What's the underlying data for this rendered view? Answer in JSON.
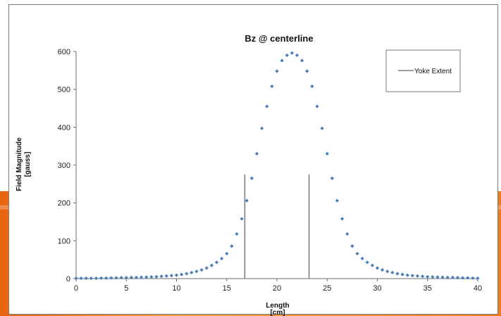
{
  "chart_data": {
    "type": "scatter",
    "title": "Bz @ centerline",
    "xlabel": "Length",
    "xlabel_unit": "[cm]",
    "ylabel": "Field Magnitude",
    "ylabel_unit": "[gauss]",
    "xlim": [
      0,
      40
    ],
    "ylim": [
      0,
      600
    ],
    "xticks": [
      "0",
      "5",
      "10",
      "15",
      "20",
      "25",
      "30",
      "35",
      "40"
    ],
    "yticks": [
      "0",
      "100",
      "200",
      "300",
      "400",
      "500",
      "600"
    ],
    "grid": false,
    "legend_position": "top-right",
    "colors": {
      "points": "#4a7ebb",
      "yoke": "#808080"
    },
    "series": [
      {
        "x": [
          0,
          0.5,
          1,
          1.5,
          2,
          2.5,
          3,
          3.5,
          4,
          4.5,
          5,
          5.5,
          6,
          6.5,
          7,
          7.5,
          8,
          8.5,
          9,
          9.5,
          10,
          10.5,
          11,
          11.5,
          12,
          12.5,
          13,
          13.5,
          14,
          14.5,
          15,
          15.5,
          16,
          16.5,
          17,
          17.5,
          18,
          18.5,
          19,
          19.5,
          20,
          20.5,
          21,
          21.5,
          22,
          22.5,
          23,
          23.5,
          24,
          24.5,
          25,
          25.5,
          26,
          26.5,
          27,
          27.5,
          28,
          28.5,
          29,
          29.5,
          30,
          30.5,
          31,
          31.5,
          32,
          32.5,
          33,
          33.5,
          34,
          34.5,
          35,
          35.5,
          36,
          36.5,
          37,
          37.5,
          38,
          38.5,
          39,
          39.5,
          40
        ],
        "y": [
          1,
          1,
          1,
          1,
          1,
          1.5,
          1.5,
          2,
          2,
          2.5,
          2.5,
          3,
          3,
          3.5,
          4,
          4.5,
          5,
          6,
          7,
          8,
          9,
          11,
          13,
          16,
          19,
          23,
          28,
          35,
          43,
          53,
          66,
          86,
          118,
          158,
          206,
          265,
          330,
          397,
          455,
          508,
          548,
          576,
          590,
          596,
          590,
          576,
          548,
          508,
          455,
          397,
          330,
          265,
          206,
          158,
          118,
          86,
          66,
          53,
          43,
          35,
          28,
          23,
          19,
          16,
          13,
          11,
          9,
          8,
          7,
          6,
          5,
          4.5,
          4,
          3.5,
          3,
          3,
          2.5,
          2,
          2,
          1.5,
          1
        ]
      },
      {
        "name": "Yoke Extent",
        "type": "line",
        "segments": [
          {
            "x": 16.8,
            "y": [
              0,
              275
            ]
          },
          {
            "x": 23.2,
            "y": [
              0,
              275
            ]
          }
        ]
      }
    ]
  }
}
